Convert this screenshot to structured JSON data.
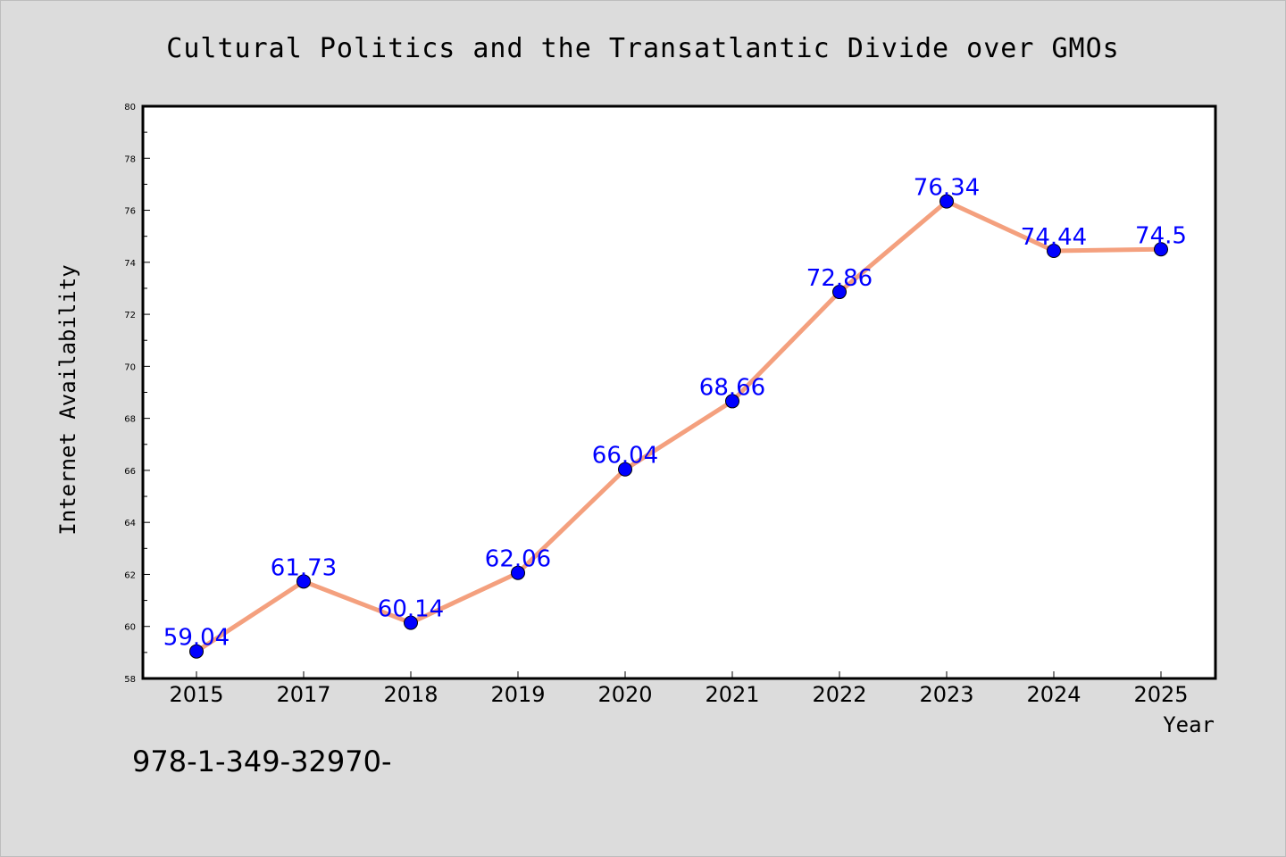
{
  "chart_data": {
    "type": "line",
    "title": "Cultural Politics and the Transatlantic Divide over GMOs",
    "xlabel": "Year",
    "ylabel": "Internet Availability",
    "categories": [
      "2015",
      "2017",
      "2018",
      "2019",
      "2020",
      "2021",
      "2022",
      "2023",
      "2024",
      "2025"
    ],
    "series": [
      {
        "values": [
          59.04,
          61.73,
          60.14,
          62.06,
          66.04,
          68.66,
          72.86,
          76.34,
          74.44,
          74.5
        ],
        "labels": [
          "59.04",
          "61.73",
          "60.14",
          "62.06",
          "66.04",
          "68.66",
          "72.86",
          "76.34",
          "74.44",
          "74.5"
        ]
      }
    ],
    "ylim": [
      58,
      80
    ],
    "yticks": [
      58,
      60,
      62,
      64,
      66,
      68,
      70,
      72,
      74,
      76,
      78,
      80
    ],
    "grid": false,
    "colors": {
      "line": "#f4a07e",
      "marker": "#0000ff",
      "data_label": "#0000ff",
      "background": "#dcdcdc",
      "plot_area": "#ffffff"
    }
  },
  "footer": {
    "text": "978-1-349-32970-"
  }
}
